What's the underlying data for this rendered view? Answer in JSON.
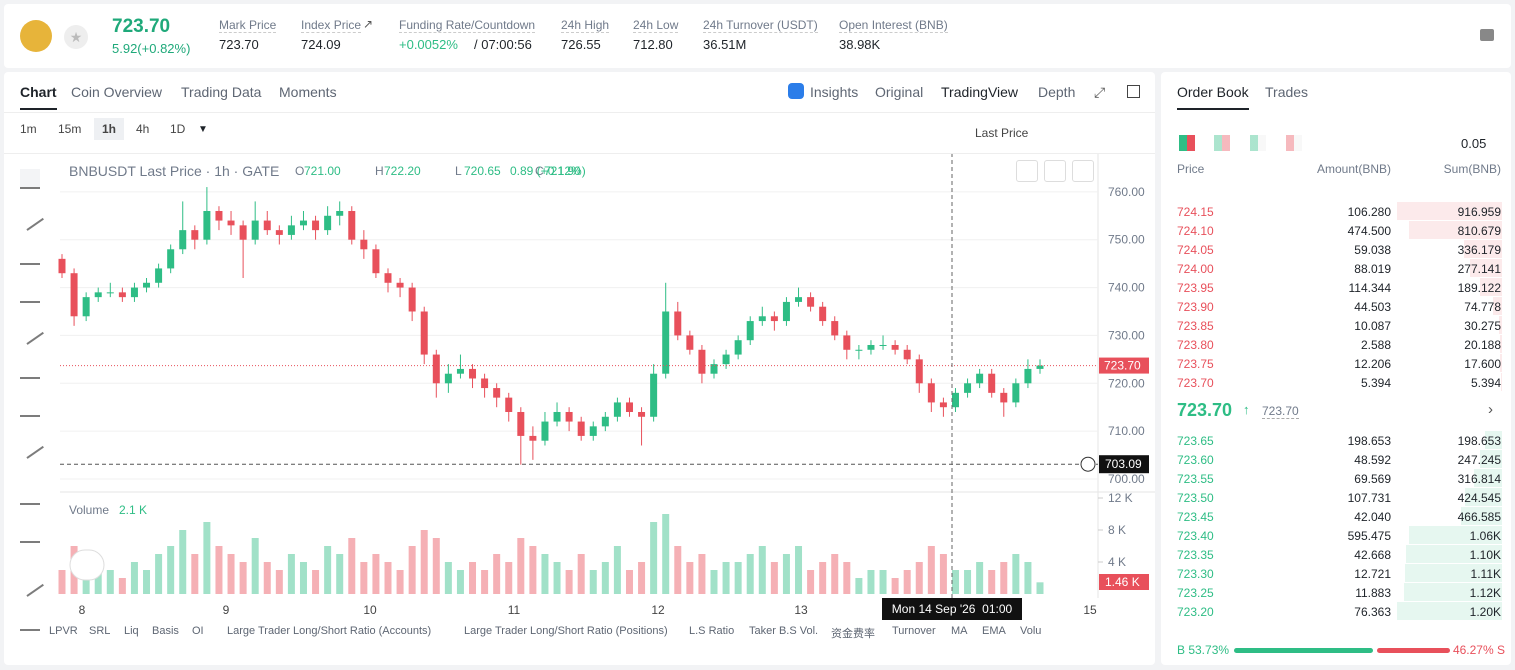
{
  "header": {
    "price": "723.70",
    "change": "5.92(+0.82%)",
    "stats": [
      {
        "label": "Mark Price",
        "value": "723.70"
      },
      {
        "label": "Index Price",
        "value": "724.09"
      },
      {
        "label": "Funding Rate/Countdown",
        "value": "+0.0052%",
        "extra": "/ 07:00:56"
      },
      {
        "label": "24h High",
        "value": "726.55"
      },
      {
        "label": "24h Low",
        "value": "712.80"
      },
      {
        "label": "24h Turnover (USDT)",
        "value": "36.51M"
      },
      {
        "label": "Open Interest (BNB)",
        "value": "38.98K"
      }
    ]
  },
  "tabs": [
    "Chart",
    "Coin Overview",
    "Trading Data",
    "Moments"
  ],
  "views": [
    "Insights",
    "Original",
    "TradingView",
    "Depth"
  ],
  "intervals": [
    "1m",
    "15m",
    "1h",
    "4h",
    "1D"
  ],
  "price_source": "Last Price",
  "legend": {
    "symbol": "BNBUSDT Last Price · 1h · GATE",
    "ohlc": [
      {
        "label": "O",
        "value": "721.00"
      },
      {
        "label": "H",
        "value": "722.20"
      },
      {
        "label": "L",
        "value": "720.65"
      },
      {
        "label": "C",
        "value": "721.90"
      }
    ],
    "change": "0.89 (+0.12%)"
  },
  "chart_data": {
    "type": "candlestick",
    "candles": [
      [
        746,
        747,
        742,
        743
      ],
      [
        743,
        744,
        732,
        734
      ],
      [
        734,
        739,
        733,
        738
      ],
      [
        738,
        740,
        737,
        739
      ],
      [
        739,
        741,
        738,
        739
      ],
      [
        739,
        740,
        737,
        738
      ],
      [
        738,
        741,
        737,
        740
      ],
      [
        740,
        742,
        739,
        741
      ],
      [
        741,
        745,
        740,
        744
      ],
      [
        744,
        749,
        743,
        748
      ],
      [
        748,
        758,
        747,
        752
      ],
      [
        752,
        753,
        748,
        750
      ],
      [
        750,
        761,
        749,
        756
      ],
      [
        756,
        757,
        752,
        754
      ],
      [
        754,
        756,
        751,
        753
      ],
      [
        753,
        754,
        742,
        750
      ],
      [
        750,
        758,
        749,
        754
      ],
      [
        754,
        756,
        751,
        752
      ],
      [
        752,
        753,
        749,
        751
      ],
      [
        751,
        755,
        750,
        753
      ],
      [
        753,
        756,
        752,
        754
      ],
      [
        754,
        755,
        750,
        752
      ],
      [
        752,
        757,
        751,
        755
      ],
      [
        755,
        758,
        753,
        756
      ],
      [
        756,
        757,
        749,
        750
      ],
      [
        750,
        752,
        746,
        748
      ],
      [
        748,
        749,
        742,
        743
      ],
      [
        743,
        744,
        739,
        741
      ],
      [
        741,
        742,
        738,
        740
      ],
      [
        740,
        741,
        733,
        735
      ],
      [
        735,
        736,
        724,
        726
      ],
      [
        726,
        727,
        717,
        720
      ],
      [
        720,
        724,
        718,
        722
      ],
      [
        722,
        726,
        721,
        723
      ],
      [
        723,
        724,
        719,
        721
      ],
      [
        721,
        722,
        717,
        719
      ],
      [
        719,
        720,
        715,
        717
      ],
      [
        717,
        718,
        712,
        714
      ],
      [
        714,
        715,
        703,
        709
      ],
      [
        709,
        711,
        704,
        708
      ],
      [
        708,
        714,
        707,
        712
      ],
      [
        712,
        716,
        711,
        714
      ],
      [
        714,
        715,
        710,
        712
      ],
      [
        712,
        713,
        708,
        709
      ],
      [
        709,
        712,
        708,
        711
      ],
      [
        711,
        714,
        710,
        713
      ],
      [
        713,
        717,
        712,
        716
      ],
      [
        716,
        717,
        713,
        714
      ],
      [
        714,
        715,
        707,
        713
      ],
      [
        713,
        724,
        712,
        722
      ],
      [
        722,
        741,
        721,
        735
      ],
      [
        735,
        737,
        729,
        730
      ],
      [
        730,
        731,
        726,
        727
      ],
      [
        727,
        728,
        720,
        722
      ],
      [
        722,
        725,
        721,
        724
      ],
      [
        724,
        727,
        723,
        726
      ],
      [
        726,
        730,
        725,
        729
      ],
      [
        729,
        734,
        728,
        733
      ],
      [
        733,
        736,
        732,
        734
      ],
      [
        734,
        735,
        731,
        733
      ],
      [
        733,
        738,
        732,
        737
      ],
      [
        737,
        740,
        736,
        738
      ],
      [
        738,
        739,
        735,
        736
      ],
      [
        736,
        737,
        732,
        733
      ],
      [
        733,
        734,
        729,
        730
      ],
      [
        730,
        731,
        725,
        727
      ],
      [
        727,
        728,
        725,
        727
      ],
      [
        727,
        729,
        726,
        728
      ],
      [
        728,
        730,
        727,
        728
      ],
      [
        728,
        729,
        726,
        727
      ],
      [
        727,
        728,
        724,
        725
      ],
      [
        725,
        726,
        718,
        720
      ],
      [
        720,
        721,
        714,
        716
      ],
      [
        716,
        717,
        713,
        715
      ],
      [
        715,
        719,
        714,
        718
      ],
      [
        718,
        721,
        717,
        720
      ],
      [
        720,
        723,
        719,
        722
      ],
      [
        722,
        723,
        717,
        718
      ],
      [
        718,
        719,
        713,
        716
      ],
      [
        716,
        721,
        715,
        720
      ],
      [
        720,
        725,
        719,
        723
      ],
      [
        723,
        725,
        722,
        723.7
      ]
    ],
    "volume": [
      3,
      6,
      2,
      4,
      3,
      2,
      4,
      3,
      5,
      6,
      8,
      5,
      9,
      6,
      5,
      4,
      7,
      4,
      3,
      5,
      4,
      3,
      6,
      5,
      7,
      4,
      5,
      4,
      3,
      6,
      8,
      7,
      4,
      3,
      4,
      3,
      5,
      4,
      7,
      6,
      5,
      4,
      3,
      5,
      3,
      4,
      6,
      3,
      4,
      9,
      10,
      6,
      4,
      5,
      3,
      4,
      4,
      5,
      6,
      4,
      5,
      6,
      3,
      4,
      5,
      4,
      2,
      3,
      3,
      2,
      3,
      4,
      6,
      5,
      3,
      3,
      4,
      3,
      4,
      5,
      4,
      1.46
    ],
    "ylim": [
      697.7,
      767.7
    ],
    "yticks": [
      {
        "value": 700,
        "label": "700.00"
      },
      {
        "value": 710,
        "label": "710.00"
      },
      {
        "value": 720,
        "label": "720.00"
      },
      {
        "value": 730,
        "label": "730.00"
      },
      {
        "value": 740,
        "label": "740.00"
      },
      {
        "value": 750,
        "label": "750.00"
      },
      {
        "value": 760,
        "label": "760.00"
      }
    ],
    "volume_ylim": [
      0,
      12.75
    ],
    "volume_yticks": [
      {
        "value": 4,
        "label": "4 K"
      },
      {
        "value": 8,
        "label": "8 K"
      },
      {
        "value": 12,
        "label": "12 K"
      }
    ],
    "volume_title": "Volume",
    "volume_value": "2.1 K",
    "last_volume": {
      "value": 1.46,
      "label": "1.46 K"
    },
    "last_price": {
      "value": 723.7,
      "label": "723.70"
    },
    "low_line": 703.09,
    "x_labels": [
      "8",
      "9",
      "10",
      "11",
      "12",
      "13",
      "15"
    ],
    "crosshair_label": "Mon 14 Sep '26  01:00"
  },
  "indicators": [
    "LPVR",
    "SRL",
    "Liq",
    "Basis",
    "OI",
    "Large Trader Long/Short Ratio (Accounts)",
    "Large Trader Long/Short Ratio (Positions)",
    "L.S Ratio",
    "Taker B.S Vol.",
    "资金费率",
    "Turnover",
    "MA",
    "EMA",
    "Volu"
  ],
  "order_book": {
    "tabs": [
      "Order Book",
      "Trades"
    ],
    "precision": "0.05",
    "headers": [
      "Price",
      "Amount(BNB)",
      "Sum(BNB)"
    ],
    "asks": [
      [
        "724.15",
        "106.280",
        "916.959"
      ],
      [
        "724.10",
        "474.500",
        "810.679"
      ],
      [
        "724.05",
        "59.038",
        "336.179"
      ],
      [
        "724.00",
        "88.019",
        "277.141"
      ],
      [
        "723.95",
        "114.344",
        "189.122"
      ],
      [
        "723.90",
        "44.503",
        "74.778"
      ],
      [
        "723.85",
        "10.087",
        "30.275"
      ],
      [
        "723.80",
        "2.588",
        "20.188"
      ],
      [
        "723.75",
        "12.206",
        "17.600"
      ],
      [
        "723.70",
        "5.394",
        "5.394"
      ]
    ],
    "mid": "723.70",
    "mark": "723.70",
    "bids": [
      [
        "723.65",
        "198.653",
        "198.653"
      ],
      [
        "723.60",
        "48.592",
        "247.245"
      ],
      [
        "723.55",
        "69.569",
        "316.814"
      ],
      [
        "723.50",
        "107.731",
        "424.545"
      ],
      [
        "723.45",
        "42.040",
        "466.585"
      ],
      [
        "723.40",
        "595.475",
        "1.06K"
      ],
      [
        "723.35",
        "42.668",
        "1.10K"
      ],
      [
        "723.30",
        "12.721",
        "1.11K"
      ],
      [
        "723.25",
        "11.883",
        "1.12K"
      ],
      [
        "723.20",
        "76.363",
        "1.20K"
      ]
    ],
    "buy": {
      "value": 53.73,
      "label": "B 53.73%"
    },
    "sell": {
      "value": 46.27,
      "label": "46.27% S"
    }
  }
}
